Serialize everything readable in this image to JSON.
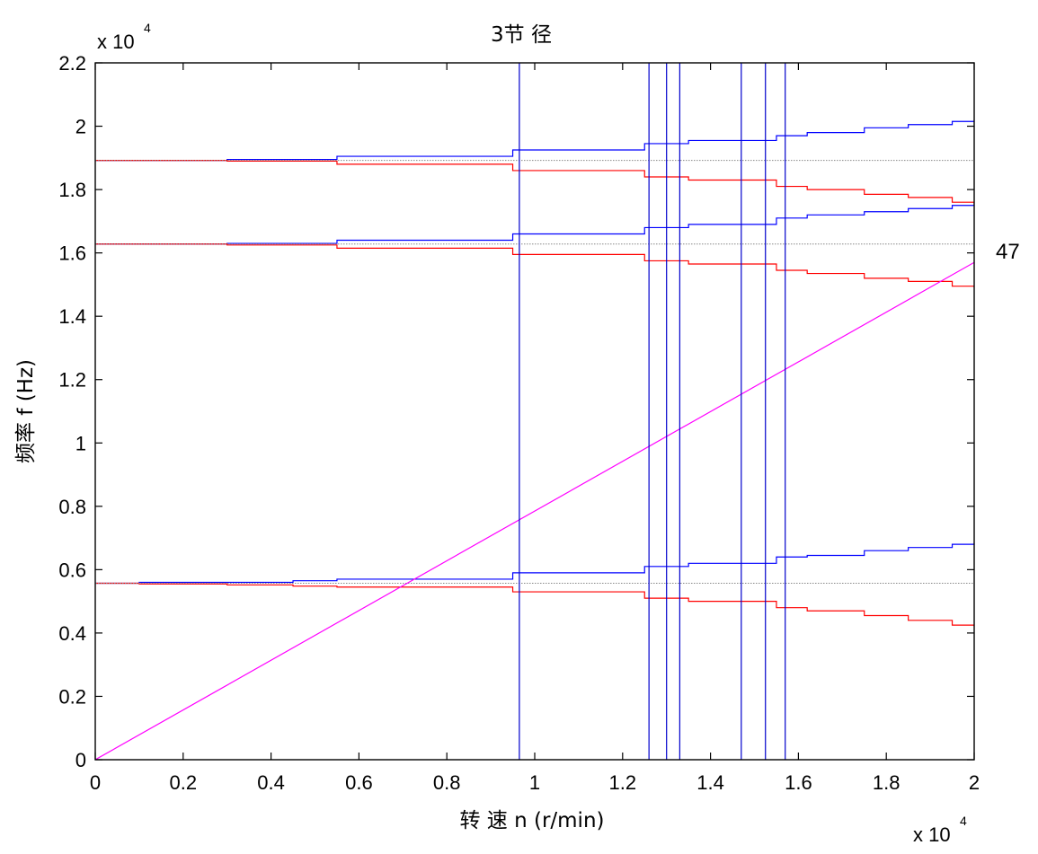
{
  "chart_data": {
    "type": "line",
    "title": "3节 径",
    "xlabel": "转 速   n (r/min)",
    "ylabel": "频率   f (Hz)",
    "x_exponent": {
      "prefix": "x 10",
      "power": "4"
    },
    "y_exponent": {
      "prefix": "x 10",
      "power": "4"
    },
    "xlim": [
      0,
      2
    ],
    "ylim": [
      0,
      2.2
    ],
    "x_ticks": [
      "0",
      "0.2",
      "0.4",
      "0.6",
      "0.8",
      "1",
      "1.2",
      "1.4",
      "1.6",
      "1.8",
      "2"
    ],
    "y_ticks": [
      "0",
      "0.2",
      "0.4",
      "0.6",
      "0.8",
      "1",
      "1.2",
      "1.4",
      "1.6",
      "1.8",
      "2",
      "2.2"
    ],
    "annotations": [
      {
        "text": "47",
        "x": 2.0,
        "y": 1.57
      }
    ],
    "grid": false,
    "series": [
      {
        "color": "#0000ff",
        "style": "step",
        "x": [
          0,
          0.1,
          0.3,
          0.45,
          0.55,
          0.95,
          1.25,
          1.35,
          1.55,
          1.62,
          1.75,
          1.85,
          1.95,
          2.0
        ],
        "y": [
          0.557,
          0.56,
          0.56,
          0.565,
          0.57,
          0.59,
          0.61,
          0.62,
          0.64,
          0.645,
          0.66,
          0.67,
          0.68,
          0.685
        ]
      },
      {
        "color": "#ff0000",
        "style": "step",
        "x": [
          0,
          0.1,
          0.3,
          0.45,
          0.55,
          0.95,
          1.25,
          1.35,
          1.55,
          1.62,
          1.75,
          1.85,
          1.95,
          2.0
        ],
        "y": [
          0.557,
          0.555,
          0.552,
          0.548,
          0.545,
          0.53,
          0.51,
          0.5,
          0.48,
          0.47,
          0.455,
          0.44,
          0.425,
          0.42
        ]
      },
      {
        "color": "#0000ff",
        "style": "step",
        "x": [
          0,
          0.3,
          0.55,
          0.95,
          1.25,
          1.35,
          1.55,
          1.62,
          1.75,
          1.85,
          1.95,
          2.0
        ],
        "y": [
          1.628,
          1.63,
          1.64,
          1.66,
          1.68,
          1.69,
          1.71,
          1.72,
          1.73,
          1.74,
          1.75,
          1.755
        ]
      },
      {
        "color": "#ff0000",
        "style": "step",
        "x": [
          0,
          0.3,
          0.55,
          0.95,
          1.25,
          1.35,
          1.55,
          1.62,
          1.75,
          1.85,
          1.95,
          2.0
        ],
        "y": [
          1.628,
          1.625,
          1.615,
          1.595,
          1.575,
          1.565,
          1.545,
          1.535,
          1.52,
          1.51,
          1.495,
          1.49
        ]
      },
      {
        "color": "#0000ff",
        "style": "step",
        "x": [
          0,
          0.3,
          0.55,
          0.95,
          1.25,
          1.35,
          1.55,
          1.62,
          1.75,
          1.85,
          1.95,
          2.0
        ],
        "y": [
          1.892,
          1.895,
          1.905,
          1.925,
          1.945,
          1.955,
          1.97,
          1.98,
          1.995,
          2.005,
          2.015,
          2.02
        ]
      },
      {
        "color": "#ff0000",
        "style": "step",
        "x": [
          0,
          0.3,
          0.55,
          0.95,
          1.25,
          1.35,
          1.55,
          1.62,
          1.75,
          1.85,
          1.95,
          2.0
        ],
        "y": [
          1.892,
          1.89,
          1.88,
          1.86,
          1.84,
          1.83,
          1.81,
          1.8,
          1.785,
          1.775,
          1.76,
          1.755
        ]
      },
      {
        "color": "#888888",
        "style": "dotted",
        "x": [
          0,
          2
        ],
        "y": [
          0.557,
          0.557
        ]
      },
      {
        "color": "#888888",
        "style": "dotted",
        "x": [
          0,
          2
        ],
        "y": [
          1.628,
          1.628
        ]
      },
      {
        "color": "#888888",
        "style": "dotted",
        "x": [
          0,
          2
        ],
        "y": [
          1.892,
          1.892
        ]
      },
      {
        "color": "#ff00ff",
        "style": "line",
        "x": [
          0,
          2
        ],
        "y": [
          0,
          1.57
        ]
      }
    ],
    "vertical_lines": {
      "color": "#0000cc",
      "x": [
        0.965,
        1.26,
        1.3,
        1.33,
        1.47,
        1.525,
        1.57
      ]
    }
  }
}
